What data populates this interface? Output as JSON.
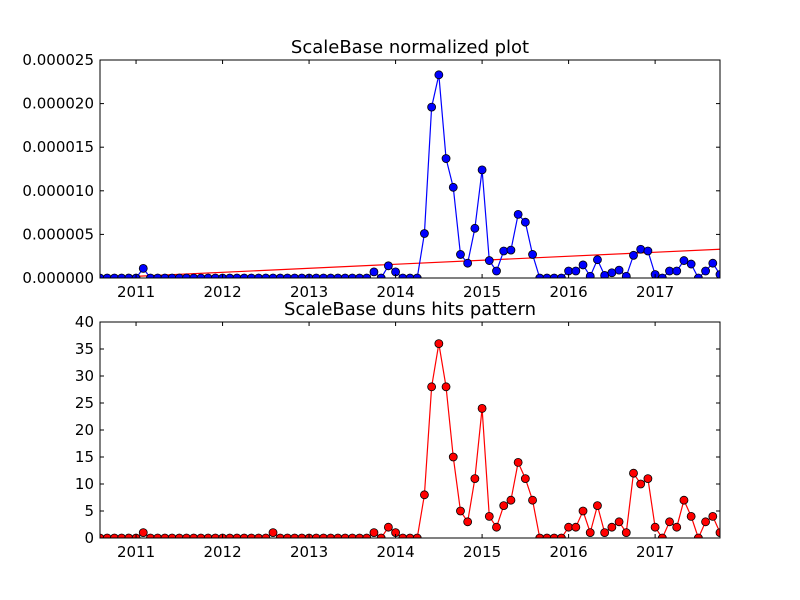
{
  "chart_data": [
    {
      "type": "line",
      "title": "ScaleBase normalized plot",
      "xlabel": "",
      "ylabel": "",
      "x_ticks": [
        "2011",
        "2012",
        "2013",
        "2014",
        "2015",
        "2016",
        "2017"
      ],
      "y_ticks": [
        "0.000000",
        "0.000005",
        "0.000010",
        "0.000015",
        "0.000020",
        "0.000025"
      ],
      "ylim": [
        0,
        2.5e-05
      ],
      "xlim": [
        "2010-08",
        "2017-10"
      ],
      "series": [
        {
          "name": "",
          "color": "#0000ff",
          "marker_color": "#0000ff",
          "x": [
            "2010-08",
            "2010-09",
            "2010-10",
            "2010-11",
            "2010-12",
            "2011-01",
            "2011-02",
            "2011-03",
            "2011-04",
            "2011-05",
            "2011-06",
            "2011-07",
            "2011-08",
            "2011-09",
            "2011-10",
            "2011-11",
            "2011-12",
            "2012-01",
            "2012-02",
            "2012-03",
            "2012-04",
            "2012-05",
            "2012-06",
            "2012-07",
            "2012-08",
            "2012-09",
            "2012-10",
            "2012-11",
            "2012-12",
            "2013-01",
            "2013-02",
            "2013-03",
            "2013-04",
            "2013-05",
            "2013-06",
            "2013-07",
            "2013-08",
            "2013-09",
            "2013-10",
            "2013-11",
            "2013-12",
            "2014-01",
            "2014-02",
            "2014-03",
            "2014-04",
            "2014-05",
            "2014-06",
            "2014-07",
            "2014-08",
            "2014-09",
            "2014-10",
            "2014-11",
            "2014-12",
            "2015-01",
            "2015-02",
            "2015-03",
            "2015-04",
            "2015-05",
            "2015-06",
            "2015-07",
            "2015-08",
            "2015-09",
            "2015-10",
            "2015-11",
            "2015-12",
            "2016-01",
            "2016-02",
            "2016-03",
            "2016-04",
            "2016-05",
            "2016-06",
            "2016-07",
            "2016-08",
            "2016-09",
            "2016-10",
            "2016-11",
            "2016-12",
            "2017-01",
            "2017-02",
            "2017-03",
            "2017-04",
            "2017-05",
            "2017-06",
            "2017-07",
            "2017-08",
            "2017-09",
            "2017-10"
          ],
          "values": [
            0,
            0,
            0,
            0,
            0,
            0,
            1.1e-06,
            0,
            0,
            0,
            0,
            0,
            0,
            0,
            0,
            0,
            0,
            0,
            0,
            0,
            0,
            0,
            0,
            0,
            0,
            0,
            0,
            0,
            0,
            0,
            0,
            0,
            0,
            0,
            0,
            0,
            0,
            0,
            7e-07,
            0,
            1.4e-06,
            7e-07,
            0,
            0,
            0,
            5.1e-06,
            1.96e-05,
            2.33e-05,
            1.37e-05,
            1.04e-05,
            2.7e-06,
            1.7e-06,
            5.7e-06,
            1.24e-05,
            2e-06,
            8e-07,
            3.1e-06,
            3.2e-06,
            7.3e-06,
            6.4e-06,
            2.7e-06,
            0,
            0,
            0,
            0,
            8e-07,
            8e-07,
            1.5e-06,
            2e-07,
            2.1e-06,
            3e-07,
            6e-07,
            9e-07,
            2e-07,
            2.6e-06,
            3.3e-06,
            3.1e-06,
            4e-07,
            0,
            8e-07,
            8e-07,
            2e-06,
            1.6e-06,
            0,
            8e-07,
            1.7e-06,
            4e-07
          ]
        },
        {
          "name": "",
          "type": "trend",
          "color": "#ff0000",
          "x": [
            "2010-08",
            "2017-10"
          ],
          "values": [
            0,
            3.3e-06
          ]
        }
      ]
    },
    {
      "type": "line",
      "title": "ScaleBase duns hits pattern",
      "xlabel": "",
      "ylabel": "",
      "x_ticks": [
        "2011",
        "2012",
        "2013",
        "2014",
        "2015",
        "2016",
        "2017"
      ],
      "y_ticks": [
        "0",
        "5",
        "10",
        "15",
        "20",
        "25",
        "30",
        "35",
        "40"
      ],
      "ylim": [
        0,
        40
      ],
      "xlim": [
        "2010-08",
        "2017-10"
      ],
      "series": [
        {
          "name": "",
          "color": "#ff0000",
          "marker_color": "#ff0000",
          "x": [
            "2010-08",
            "2010-09",
            "2010-10",
            "2010-11",
            "2010-12",
            "2011-01",
            "2011-02",
            "2011-03",
            "2011-04",
            "2011-05",
            "2011-06",
            "2011-07",
            "2011-08",
            "2011-09",
            "2011-10",
            "2011-11",
            "2011-12",
            "2012-01",
            "2012-02",
            "2012-03",
            "2012-04",
            "2012-05",
            "2012-06",
            "2012-07",
            "2012-08",
            "2012-09",
            "2012-10",
            "2012-11",
            "2012-12",
            "2013-01",
            "2013-02",
            "2013-03",
            "2013-04",
            "2013-05",
            "2013-06",
            "2013-07",
            "2013-08",
            "2013-09",
            "2013-10",
            "2013-11",
            "2013-12",
            "2014-01",
            "2014-02",
            "2014-03",
            "2014-04",
            "2014-05",
            "2014-06",
            "2014-07",
            "2014-08",
            "2014-09",
            "2014-10",
            "2014-11",
            "2014-12",
            "2015-01",
            "2015-02",
            "2015-03",
            "2015-04",
            "2015-05",
            "2015-06",
            "2015-07",
            "2015-08",
            "2015-09",
            "2015-10",
            "2015-11",
            "2015-12",
            "2016-01",
            "2016-02",
            "2016-03",
            "2016-04",
            "2016-05",
            "2016-06",
            "2016-07",
            "2016-08",
            "2016-09",
            "2016-10",
            "2016-11",
            "2016-12",
            "2017-01",
            "2017-02",
            "2017-03",
            "2017-04",
            "2017-05",
            "2017-06",
            "2017-07",
            "2017-08",
            "2017-09",
            "2017-10"
          ],
          "values": [
            0,
            0,
            0,
            0,
            0,
            0,
            1,
            0,
            0,
            0,
            0,
            0,
            0,
            0,
            0,
            0,
            0,
            0,
            0,
            0,
            0,
            0,
            0,
            0,
            1,
            0,
            0,
            0,
            0,
            0,
            0,
            0,
            0,
            0,
            0,
            0,
            0,
            0,
            1,
            0,
            2,
            1,
            0,
            0,
            0,
            8,
            28,
            36,
            28,
            15,
            5,
            3,
            11,
            24,
            4,
            2,
            6,
            7,
            14,
            11,
            7,
            0,
            0,
            0,
            0,
            2,
            2,
            5,
            1,
            6,
            1,
            2,
            3,
            1,
            12,
            10,
            11,
            2,
            0,
            3,
            2,
            7,
            4,
            0,
            3,
            4,
            1
          ]
        }
      ]
    }
  ]
}
